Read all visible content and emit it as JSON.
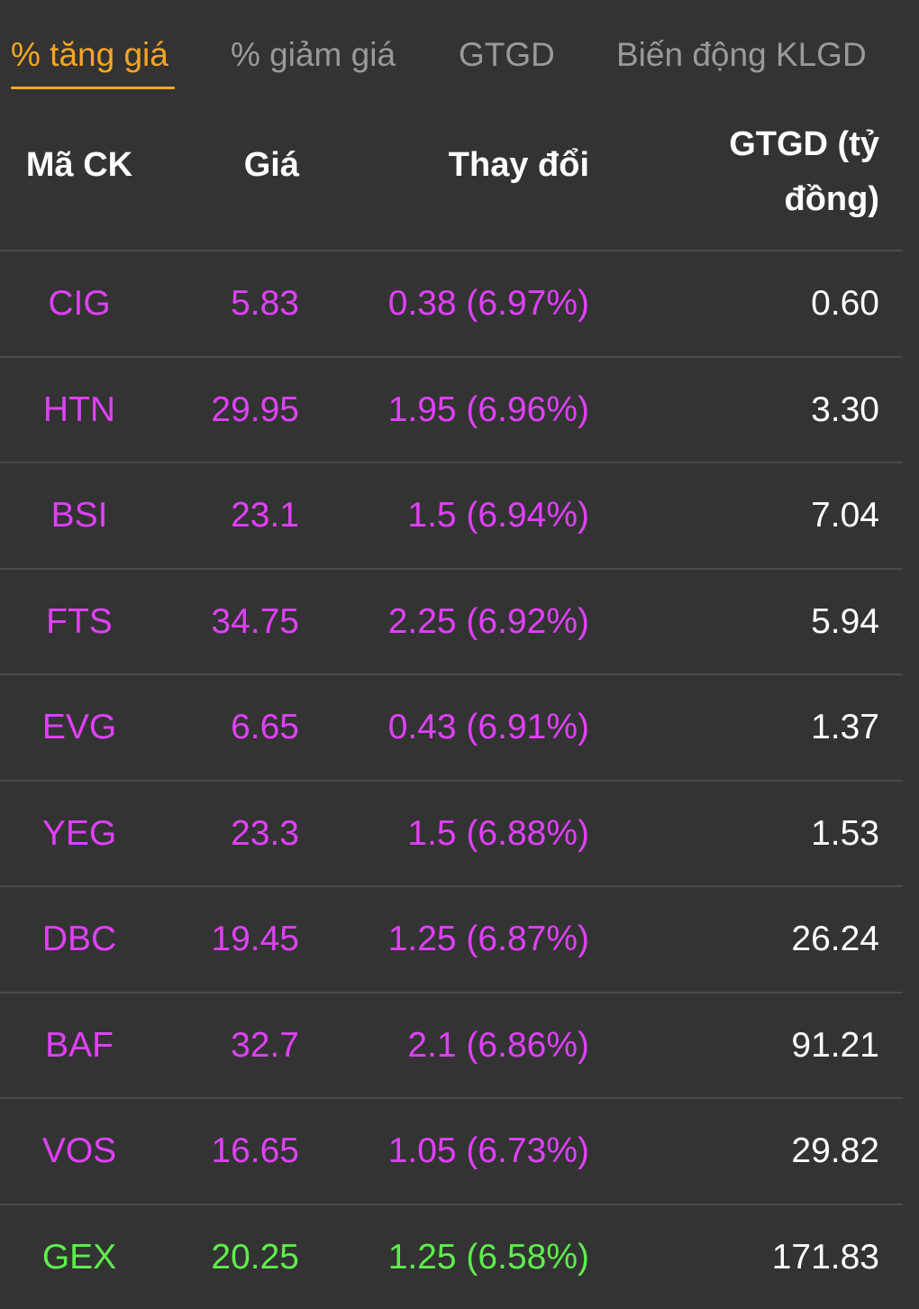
{
  "tabs": [
    {
      "label": "% tăng giá",
      "active": true
    },
    {
      "label": "% giảm giá",
      "active": false
    },
    {
      "label": "GTGD",
      "active": false
    },
    {
      "label": "Biến động KLGD",
      "active": false
    }
  ],
  "colors": {
    "accent": "#f5a623",
    "ceiling": "#e040fb",
    "increase": "#5cf04a",
    "background": "#333333",
    "text": "#ffffff"
  },
  "table": {
    "headers": {
      "code": "Mã CK",
      "price": "Giá",
      "change": "Thay đổi",
      "value": "GTGD (tỷ đồng)"
    },
    "rows": [
      {
        "code": "CIG",
        "price": "5.83",
        "change": "0.38 (6.97%)",
        "value": "0.60",
        "status": "ceiling"
      },
      {
        "code": "HTN",
        "price": "29.95",
        "change": "1.95 (6.96%)",
        "value": "3.30",
        "status": "ceiling"
      },
      {
        "code": "BSI",
        "price": "23.1",
        "change": "1.5 (6.94%)",
        "value": "7.04",
        "status": "ceiling"
      },
      {
        "code": "FTS",
        "price": "34.75",
        "change": "2.25 (6.92%)",
        "value": "5.94",
        "status": "ceiling"
      },
      {
        "code": "EVG",
        "price": "6.65",
        "change": "0.43 (6.91%)",
        "value": "1.37",
        "status": "ceiling"
      },
      {
        "code": "YEG",
        "price": "23.3",
        "change": "1.5 (6.88%)",
        "value": "1.53",
        "status": "ceiling"
      },
      {
        "code": "DBC",
        "price": "19.45",
        "change": "1.25 (6.87%)",
        "value": "26.24",
        "status": "ceiling"
      },
      {
        "code": "BAF",
        "price": "32.7",
        "change": "2.1 (6.86%)",
        "value": "91.21",
        "status": "ceiling"
      },
      {
        "code": "VOS",
        "price": "16.65",
        "change": "1.05 (6.73%)",
        "value": "29.82",
        "status": "ceiling"
      },
      {
        "code": "GEX",
        "price": "20.25",
        "change": "1.25 (6.58%)",
        "value": "171.83",
        "status": "increase"
      }
    ]
  }
}
